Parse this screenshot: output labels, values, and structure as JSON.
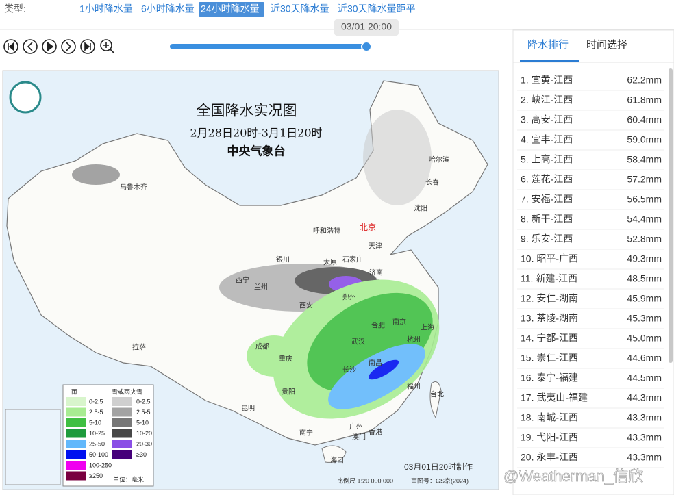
{
  "toolbar": {
    "type_label": "类型:",
    "tabs": [
      "1小时降水量",
      "6小时降水量",
      "24小时降水量",
      "近30天降水量",
      "近30天降水量距平"
    ],
    "active_tab": 2,
    "time_tooltip": "03/01 20:00"
  },
  "panel": {
    "tabs": [
      "降水排行",
      "时间选择"
    ],
    "active_tab": 0,
    "rows": [
      [
        "1. 宜黄-江西",
        "62.2mm"
      ],
      [
        "2. 峡江-江西",
        "61.8mm"
      ],
      [
        "3. 高安-江西",
        "60.4mm"
      ],
      [
        "4. 宜丰-江西",
        "59.0mm"
      ],
      [
        "5. 上高-江西",
        "58.4mm"
      ],
      [
        "6. 莲花-江西",
        "57.2mm"
      ],
      [
        "7. 安福-江西",
        "56.5mm"
      ],
      [
        "8. 新干-江西",
        "54.4mm"
      ],
      [
        "9. 乐安-江西",
        "52.8mm"
      ],
      [
        "10. 昭平-广西",
        "49.3mm"
      ],
      [
        "11. 新建-江西",
        "48.5mm"
      ],
      [
        "12. 安仁-湖南",
        "45.9mm"
      ],
      [
        "13. 茶陵-湖南",
        "45.3mm"
      ],
      [
        "14. 宁都-江西",
        "45.0mm"
      ],
      [
        "15. 崇仁-江西",
        "44.6mm"
      ],
      [
        "16. 泰宁-福建",
        "44.5mm"
      ],
      [
        "17. 武夷山-福建",
        "44.3mm"
      ],
      [
        "18. 南城-江西",
        "43.3mm"
      ],
      [
        "19. 弋阳-江西",
        "43.3mm"
      ],
      [
        "20. 永丰-江西",
        "43.3mm"
      ]
    ]
  },
  "map": {
    "title": "全国降水实况图",
    "period": "2月28日20时-3月1日20时",
    "agency": "中央气象台",
    "cities": [
      "乌鲁木齐",
      "哈尔滨",
      "长春",
      "沈阳",
      "呼和浩特",
      "北京",
      "天津",
      "银川",
      "太原",
      "石家庄",
      "济南",
      "西宁",
      "兰州",
      "郑州",
      "西安",
      "合肥",
      "南京",
      "上海",
      "成都",
      "武汉",
      "杭州",
      "拉萨",
      "重庆",
      "长沙",
      "南昌",
      "福州",
      "贵阳",
      "台北",
      "昆明",
      "南宁",
      "广州",
      "香港",
      "澳门",
      "海口"
    ],
    "legend": {
      "rain_title": "雨",
      "snow_title": "雪或雨夹雪",
      "unit": "单位：毫米",
      "rain": [
        {
          "label": "0-2.5",
          "color": "#d8f5cc"
        },
        {
          "label": "2.5-5",
          "color": "#a8ec92"
        },
        {
          "label": "5-10",
          "color": "#3fbf42"
        },
        {
          "label": "10-25",
          "color": "#1e9b3c"
        },
        {
          "label": "25-50",
          "color": "#62b8fb"
        },
        {
          "label": "50-100",
          "color": "#0010f0"
        },
        {
          "label": "100-250",
          "color": "#f000f0"
        },
        {
          "label": "≥250",
          "color": "#7a0040"
        }
      ],
      "snow": [
        {
          "label": "0-2.5",
          "color": "#cfcfcf"
        },
        {
          "label": "2.5-5",
          "color": "#a3a3a3"
        },
        {
          "label": "5-10",
          "color": "#777777"
        },
        {
          "label": "10-20",
          "color": "#474747"
        },
        {
          "label": "20-30",
          "color": "#8a4fe6"
        },
        {
          "label": "≥30",
          "color": "#46007a"
        }
      ]
    },
    "made": "03月01日20时制作",
    "scale": "比例尺 1:20 000 000",
    "approval": "审图号：GS京(2024)",
    "watermark": "@Weatherman_信欣"
  }
}
